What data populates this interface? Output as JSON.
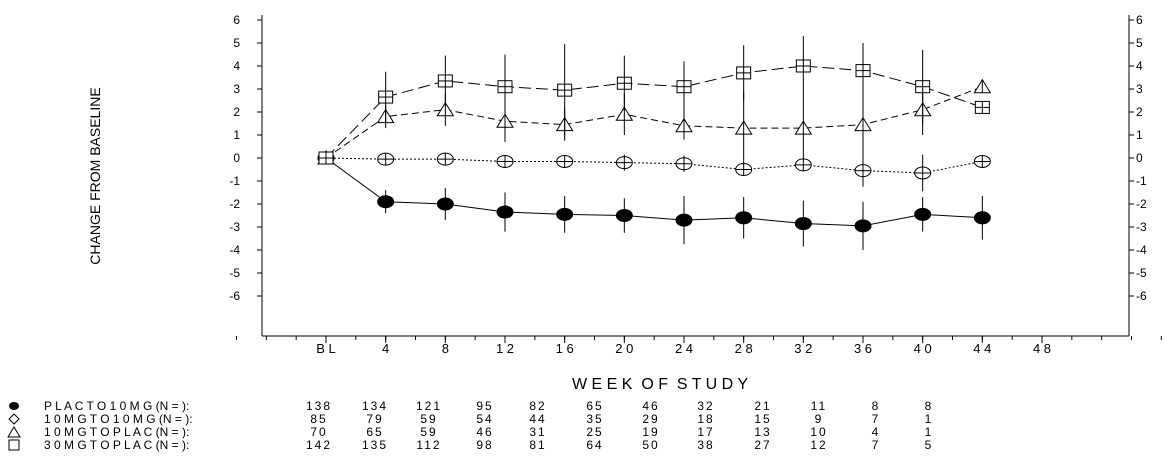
{
  "chart_data": {
    "type": "line",
    "xlabel": "W E E K  O F  S T U D Y",
    "ylabel": "CHANGE FROM BASELINE",
    "categories": [
      "B L",
      "4",
      "8",
      "1 2",
      "1 6",
      "2 0",
      "2 4",
      "2 8",
      "3 2",
      "3 6",
      "4 0",
      "4 4",
      "4 8"
    ],
    "x": [
      0,
      4,
      8,
      12,
      16,
      20,
      24,
      28,
      32,
      36,
      40,
      44,
      48
    ],
    "xlim": [
      -7.5,
      62
    ],
    "ylim": [
      -6,
      6
    ],
    "yticks": [
      6,
      5,
      4,
      3,
      2,
      1,
      0,
      -1,
      -2,
      -3,
      -4,
      -5,
      -6
    ],
    "grid": false,
    "series": [
      {
        "name": "P L A C  T O  1 0 M G  (N = ):",
        "marker": "filled-circle",
        "line": "solid",
        "x": [
          0,
          4,
          8,
          12,
          16,
          20,
          24,
          28,
          32,
          36,
          40,
          44
        ],
        "values": [
          0,
          -1.9,
          -2.0,
          -2.35,
          -2.45,
          -2.5,
          -2.7,
          -2.6,
          -2.85,
          -2.95,
          -2.45,
          -2.6
        ],
        "err": [
          0,
          0.5,
          0.7,
          0.85,
          0.8,
          0.75,
          1.05,
          0.9,
          1.0,
          1.05,
          0.75,
          0.95
        ],
        "n": [
          138,
          134,
          121,
          95,
          82,
          65,
          46,
          32,
          21,
          11,
          8,
          8
        ]
      },
      {
        "name": "1 0 M G  T O  1 0 M G  (N = ):",
        "marker": "open-circle",
        "line": "dotted",
        "x": [
          0,
          4,
          8,
          12,
          16,
          20,
          24,
          28,
          32,
          36,
          40,
          44
        ],
        "values": [
          0,
          -0.05,
          -0.05,
          -0.15,
          -0.15,
          -0.2,
          -0.25,
          -0.5,
          -0.3,
          -0.55,
          -0.65,
          -0.15
        ],
        "err": [
          0,
          0,
          0,
          0,
          0,
          0.35,
          0.35,
          0,
          0,
          0.7,
          0.8,
          0
        ],
        "n": [
          85,
          79,
          59,
          54,
          44,
          35,
          29,
          18,
          15,
          9,
          7,
          1
        ]
      },
      {
        "name": "1 0 M G  T O  P L A C  (N = ):",
        "marker": "open-triangle",
        "line": "dashed",
        "x": [
          0,
          4,
          8,
          12,
          16,
          20,
          24,
          28,
          32,
          36,
          40,
          44
        ],
        "values": [
          0,
          1.8,
          2.1,
          1.6,
          1.45,
          1.9,
          1.4,
          1.3,
          1.3,
          1.45,
          2.1,
          3.1
        ],
        "err": [
          0,
          0.5,
          0.7,
          0.9,
          0.7,
          0.9,
          0.6,
          1.6,
          1.4,
          1.3,
          1.1,
          0
        ],
        "n": [
          70,
          65,
          59,
          46,
          31,
          25,
          19,
          17,
          13,
          10,
          4,
          1
        ]
      },
      {
        "name": "3 0 M G  T O  P L A C  (N = ):",
        "marker": "open-square",
        "line": "long-dashed",
        "x": [
          0,
          4,
          8,
          12,
          16,
          20,
          24,
          28,
          32,
          36,
          40,
          44
        ],
        "values": [
          0,
          2.65,
          3.35,
          3.1,
          2.95,
          3.25,
          3.1,
          3.7,
          4.0,
          3.8,
          3.1,
          2.2
        ],
        "err": [
          0,
          1.1,
          1.1,
          1.4,
          2.0,
          1.2,
          1.1,
          1.2,
          1.3,
          1.2,
          1.6,
          0
        ],
        "n": [
          142,
          135,
          112,
          98,
          81,
          64,
          50,
          38,
          27,
          12,
          7,
          5
        ]
      }
    ]
  }
}
